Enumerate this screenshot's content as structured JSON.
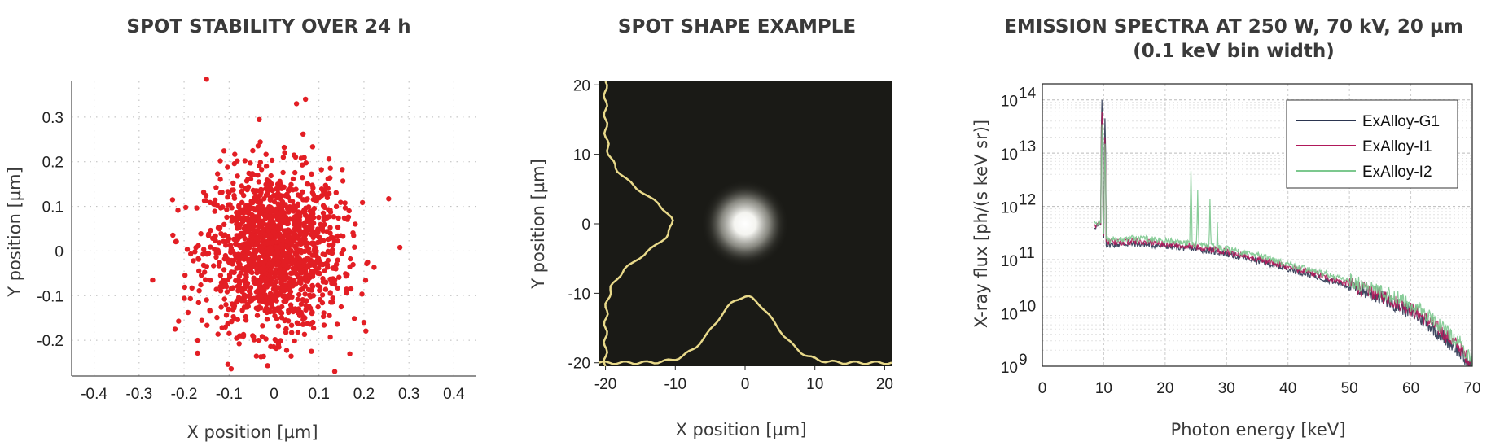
{
  "chart_data": [
    {
      "type": "scatter",
      "title": "SPOT STABILITY OVER 24 h",
      "xlabel": "X position [µm]",
      "ylabel": "Y position [µm]",
      "xlim": [
        -0.45,
        0.45
      ],
      "ylim": [
        -0.28,
        0.38
      ],
      "xticks": [
        -0.4,
        -0.3,
        -0.2,
        -0.1,
        0,
        0.1,
        0.2,
        0.3,
        0.4
      ],
      "yticks": [
        -0.2,
        -0.1,
        0,
        0.1,
        0.2,
        0.3
      ],
      "grid": true,
      "marker_color": "#e31e24",
      "n_points": 1500,
      "center": [
        0,
        0
      ],
      "spread_std": [
        0.075,
        0.09
      ],
      "outliers": [
        {
          "x": -0.15,
          "y": 0.385
        },
        {
          "x": 0.07,
          "y": 0.34
        },
        {
          "x": 0.05,
          "y": 0.33
        },
        {
          "x": 0.255,
          "y": 0.117
        },
        {
          "x": 0.28,
          "y": 0.008
        },
        {
          "x": -0.27,
          "y": -0.065
        },
        {
          "x": -0.22,
          "y": -0.175
        },
        {
          "x": 0.135,
          "y": -0.27
        },
        {
          "x": -0.17,
          "y": -0.2
        },
        {
          "x": 0.2,
          "y": -0.16
        }
      ]
    },
    {
      "type": "heatmap",
      "title": "SPOT SHAPE EXAMPLE",
      "xlabel": "X position [µm]",
      "ylabel": "Y position [µm]",
      "xlim": [
        -21,
        21
      ],
      "ylim": [
        -20.5,
        20.5
      ],
      "xticks": [
        -20,
        -10,
        0,
        10,
        20
      ],
      "yticks": [
        -20,
        -10,
        0,
        10,
        20
      ],
      "background_color": "#1a1a16",
      "spot_center": [
        0,
        0
      ],
      "profile_color": "#e8d98a",
      "x_profile": {
        "center": 0,
        "baseline": -20,
        "peak": -10.5
      },
      "y_profile": {
        "center": 0,
        "baseline": -20,
        "peak": -10.5
      }
    },
    {
      "type": "line",
      "title": "EMISSION SPECTRA AT 250 W, 70 kV, 20 µm",
      "subtitle": "(0.1 keV bin width)",
      "xlabel": "Photon energy [keV]",
      "ylabel": "X-ray flux [ph/(s keV sr)]",
      "xlim": [
        0,
        70
      ],
      "ylim": [
        1000000000.0,
        200000000000000.0
      ],
      "yscale": "log",
      "xticks": [
        0,
        10,
        20,
        30,
        40,
        50,
        60,
        70
      ],
      "ytick_exponents": [
        "14",
        "13",
        "12",
        "11",
        "10",
        "9"
      ],
      "grid": true,
      "legend_position": "top-right",
      "series": [
        {
          "name": "ExAlloy-G1",
          "color": "#2b3550",
          "x": [
            8.5,
            9.5,
            10.3,
            15,
            20,
            25,
            30,
            35,
            40,
            45,
            50,
            55,
            60,
            63,
            66,
            68,
            69,
            70
          ],
          "y": [
            420000000000.0,
            440000000000.0,
            190000000000.0,
            200000000000.0,
            180000000000.0,
            160000000000.0,
            130000000000.0,
            95000000000.0,
            68000000000.0,
            47000000000.0,
            32000000000.0,
            20000000000.0,
            10500000000.0,
            6000000000.0,
            3000000000.0,
            1800000000.0,
            1200000000.0,
            1000000000.0
          ],
          "peaks": [
            {
              "x": 9.7,
              "y": 100000000000000.0
            },
            {
              "x": 10.2,
              "y": 45000000000000.0
            }
          ]
        },
        {
          "name": "ExAlloy-I1",
          "color": "#b0185a",
          "x": [
            8.5,
            9.5,
            10.3,
            15,
            20,
            25,
            30,
            35,
            40,
            45,
            50,
            55,
            60,
            63,
            66,
            68,
            69,
            70
          ],
          "y": [
            450000000000.0,
            470000000000.0,
            210000000000.0,
            220000000000.0,
            200000000000.0,
            175000000000.0,
            140000000000.0,
            105000000000.0,
            74000000000.0,
            51000000000.0,
            35000000000.0,
            22000000000.0,
            12000000000.0,
            7000000000.0,
            3600000000.0,
            2200000000.0,
            1500000000.0,
            1100000000.0
          ],
          "peaks": [
            {
              "x": 9.7,
              "y": 60000000000000.0
            },
            {
              "x": 10.2,
              "y": 20000000000000.0
            }
          ]
        },
        {
          "name": "ExAlloy-I2",
          "color": "#7cc88e",
          "x": [
            8.5,
            9.5,
            10.3,
            15,
            20,
            25,
            30,
            35,
            40,
            45,
            50,
            55,
            60,
            63,
            66,
            68,
            69,
            70
          ],
          "y": [
            480000000000.0,
            500000000000.0,
            230000000000.0,
            250000000000.0,
            230000000000.0,
            200000000000.0,
            160000000000.0,
            120000000000.0,
            84000000000.0,
            58000000000.0,
            40000000000.0,
            26000000000.0,
            14500000000.0,
            8500000000.0,
            4500000000.0,
            2700000000.0,
            1800000000.0,
            1300000000.0
          ],
          "peaks": [
            {
              "x": 9.7,
              "y": 35000000000000.0
            },
            {
              "x": 10.2,
              "y": 15000000000000.0
            },
            {
              "x": 24.2,
              "y": 4600000000000.0
            },
            {
              "x": 25.3,
              "y": 2000000000000.0
            },
            {
              "x": 27.3,
              "y": 1400000000000.0
            },
            {
              "x": 28.5,
              "y": 500000000000.0
            }
          ]
        }
      ]
    }
  ]
}
